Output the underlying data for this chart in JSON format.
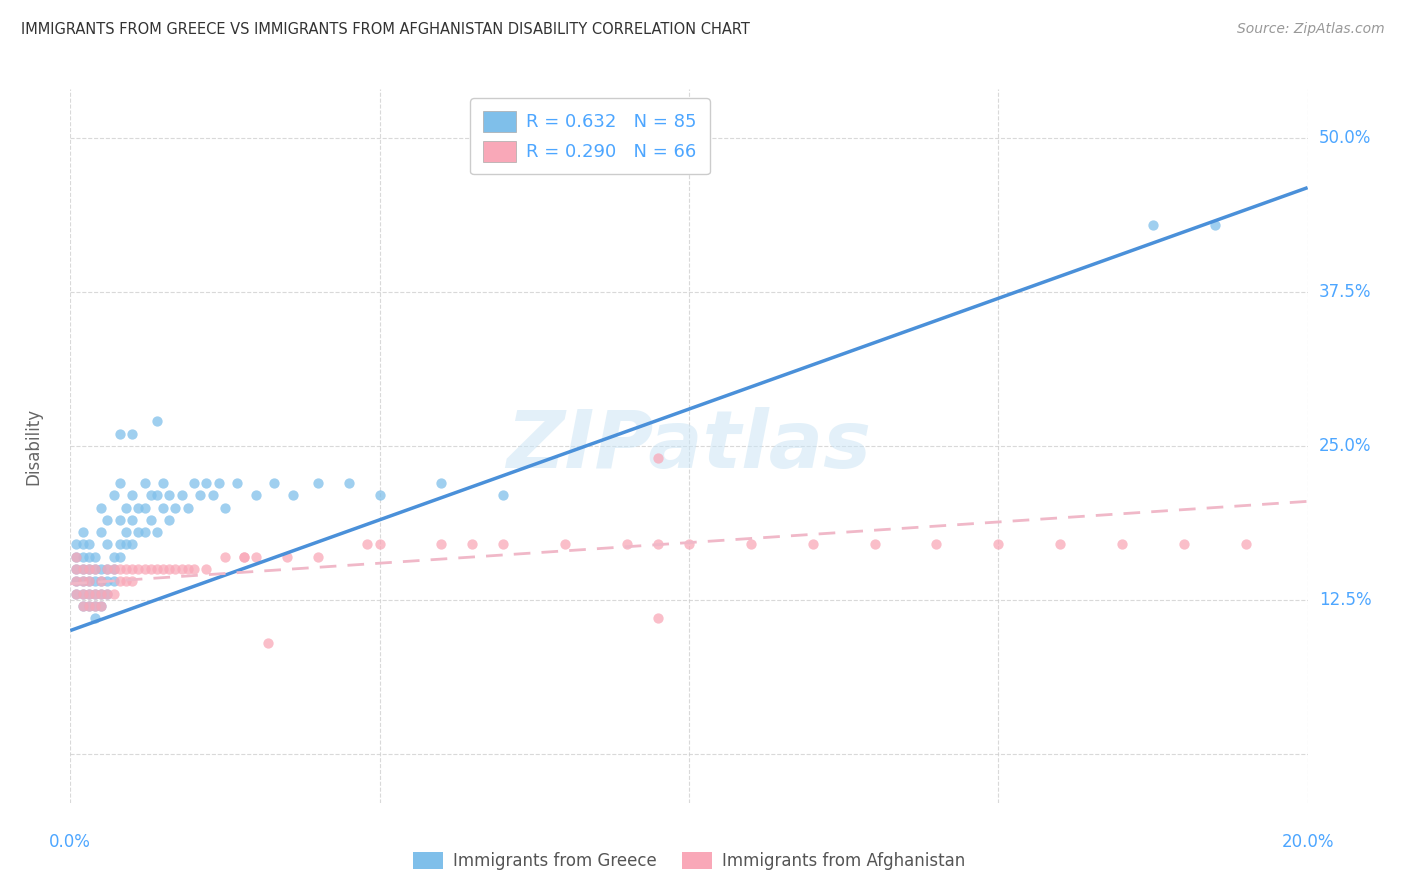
{
  "title": "IMMIGRANTS FROM GREECE VS IMMIGRANTS FROM AFGHANISTAN DISABILITY CORRELATION CHART",
  "source": "Source: ZipAtlas.com",
  "ylabel": "Disability",
  "x_ticks": [
    0.0,
    0.05,
    0.1,
    0.15,
    0.2
  ],
  "y_ticks": [
    0.0,
    0.125,
    0.25,
    0.375,
    0.5
  ],
  "y_tick_labels": [
    "",
    "12.5%",
    "25.0%",
    "37.5%",
    "50.0%"
  ],
  "xlim": [
    0.0,
    0.2
  ],
  "ylim": [
    -0.04,
    0.54
  ],
  "greece_color": "#7fbfea",
  "afghanistan_color": "#f9a8b8",
  "greece_line_color": "#4a90d9",
  "afghanistan_line_color": "#f0b8c8",
  "legend_R_greece": "R = 0.632   N = 85",
  "legend_R_afghanistan": "R = 0.290   N = 66",
  "greece_line_x": [
    0.0,
    0.2
  ],
  "greece_line_y": [
    0.1,
    0.46
  ],
  "afghanistan_line_x": [
    0.0,
    0.2
  ],
  "afghanistan_line_y": [
    0.138,
    0.205
  ],
  "watermark": "ZIPatlas",
  "background_color": "#ffffff",
  "grid_color": "#d0d0d0",
  "tick_label_color": "#4da6ff",
  "bottom_label_color": "#555555",
  "greece_scatter_x": [
    0.001,
    0.001,
    0.001,
    0.001,
    0.001,
    0.002,
    0.002,
    0.002,
    0.002,
    0.002,
    0.002,
    0.002,
    0.003,
    0.003,
    0.003,
    0.003,
    0.003,
    0.003,
    0.004,
    0.004,
    0.004,
    0.004,
    0.004,
    0.004,
    0.005,
    0.005,
    0.005,
    0.005,
    0.005,
    0.005,
    0.006,
    0.006,
    0.006,
    0.006,
    0.006,
    0.007,
    0.007,
    0.007,
    0.007,
    0.008,
    0.008,
    0.008,
    0.008,
    0.009,
    0.009,
    0.009,
    0.01,
    0.01,
    0.01,
    0.011,
    0.011,
    0.012,
    0.012,
    0.012,
    0.013,
    0.013,
    0.014,
    0.014,
    0.015,
    0.015,
    0.016,
    0.016,
    0.017,
    0.018,
    0.019,
    0.02,
    0.021,
    0.022,
    0.023,
    0.024,
    0.025,
    0.027,
    0.03,
    0.033,
    0.036,
    0.04,
    0.045,
    0.05,
    0.06,
    0.07,
    0.008,
    0.01,
    0.014,
    0.175,
    0.185
  ],
  "greece_scatter_y": [
    0.13,
    0.14,
    0.15,
    0.16,
    0.17,
    0.12,
    0.13,
    0.14,
    0.15,
    0.16,
    0.17,
    0.18,
    0.12,
    0.13,
    0.14,
    0.15,
    0.16,
    0.17,
    0.11,
    0.12,
    0.13,
    0.14,
    0.15,
    0.16,
    0.12,
    0.13,
    0.14,
    0.15,
    0.18,
    0.2,
    0.13,
    0.14,
    0.15,
    0.17,
    0.19,
    0.14,
    0.15,
    0.16,
    0.21,
    0.16,
    0.17,
    0.19,
    0.22,
    0.17,
    0.18,
    0.2,
    0.17,
    0.19,
    0.21,
    0.18,
    0.2,
    0.18,
    0.2,
    0.22,
    0.19,
    0.21,
    0.18,
    0.21,
    0.2,
    0.22,
    0.19,
    0.21,
    0.2,
    0.21,
    0.2,
    0.22,
    0.21,
    0.22,
    0.21,
    0.22,
    0.2,
    0.22,
    0.21,
    0.22,
    0.21,
    0.22,
    0.22,
    0.21,
    0.22,
    0.21,
    0.26,
    0.26,
    0.27,
    0.43,
    0.43
  ],
  "afghanistan_scatter_x": [
    0.001,
    0.001,
    0.001,
    0.001,
    0.002,
    0.002,
    0.002,
    0.002,
    0.003,
    0.003,
    0.003,
    0.003,
    0.004,
    0.004,
    0.004,
    0.005,
    0.005,
    0.005,
    0.006,
    0.006,
    0.007,
    0.007,
    0.008,
    0.008,
    0.009,
    0.009,
    0.01,
    0.01,
    0.011,
    0.012,
    0.013,
    0.014,
    0.015,
    0.016,
    0.017,
    0.018,
    0.019,
    0.02,
    0.022,
    0.025,
    0.028,
    0.03,
    0.035,
    0.04,
    0.05,
    0.06,
    0.065,
    0.07,
    0.08,
    0.09,
    0.095,
    0.1,
    0.11,
    0.12,
    0.13,
    0.14,
    0.15,
    0.16,
    0.17,
    0.18,
    0.19,
    0.095,
    0.048,
    0.032,
    0.095,
    0.028
  ],
  "afghanistan_scatter_y": [
    0.13,
    0.14,
    0.15,
    0.16,
    0.12,
    0.13,
    0.14,
    0.15,
    0.12,
    0.13,
    0.14,
    0.15,
    0.12,
    0.13,
    0.15,
    0.12,
    0.13,
    0.14,
    0.13,
    0.15,
    0.13,
    0.15,
    0.14,
    0.15,
    0.14,
    0.15,
    0.14,
    0.15,
    0.15,
    0.15,
    0.15,
    0.15,
    0.15,
    0.15,
    0.15,
    0.15,
    0.15,
    0.15,
    0.15,
    0.16,
    0.16,
    0.16,
    0.16,
    0.16,
    0.17,
    0.17,
    0.17,
    0.17,
    0.17,
    0.17,
    0.17,
    0.17,
    0.17,
    0.17,
    0.17,
    0.17,
    0.17,
    0.17,
    0.17,
    0.17,
    0.17,
    0.24,
    0.17,
    0.09,
    0.11,
    0.16
  ]
}
